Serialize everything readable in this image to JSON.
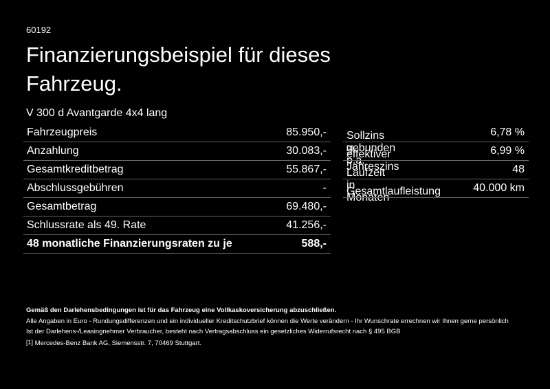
{
  "header": {
    "code": "60192",
    "title_lines": [
      "Finanzierungsbeispiel für dieses",
      "Fahrzeug."
    ],
    "model": "V 300 d Avantgarde 4x4 lang"
  },
  "left_table": {
    "rows": [
      [
        "Fahrzeugpreis",
        "85.950,-"
      ],
      [
        "Anzahlung",
        "30.083,-"
      ],
      [
        "Gesamtkreditbetrag",
        "55.867,-"
      ],
      [
        "Abschlussgebühren",
        "-"
      ],
      [
        "Gesamtbetrag",
        "69.480,-"
      ],
      [
        "Schlussrate als 49. Rate",
        "41.256,-"
      ],
      [
        "48 monatliche Finanzierungsraten zu je",
        "588,-"
      ]
    ]
  },
  "right_table": {
    "rows": [
      {
        "label": "Sollzins gebunden p.a.",
        "value": "6,78 %"
      },
      {
        "label": "effektiver Jahreszins",
        "note": "[1]",
        "value": "6,99 %"
      },
      {
        "label": "Laufzeit in Monaten",
        "value": "48"
      },
      {
        "label": "Gesamtlaufleistung",
        "value": "40.000 km"
      }
    ]
  },
  "footer": {
    "insurance_note": "Gemäß den Darlehensbedingungen ist für das Fahrzeug eine Vollkaskoversicherung abzuschließen.",
    "lines": [
      "Alle Angaben in Euro - Rundungsdifferenzen und ein individueller Kreditschutzbrief können die Werte verändern - Ihr Wunschrate errechnen wir Ihnen gerne persönlich",
      "Ist der Darlehens-/Leasingnehmer Verbraucher, besteht nach Vertragsabschluss ein gesetzliches Widerrufsrecht nach § 495 BGB"
    ],
    "footnote_mark": "[1]",
    "footnote": "Mercedes-Benz Bank AG, Siemensstr. 7, 70469 Stuttgart."
  }
}
